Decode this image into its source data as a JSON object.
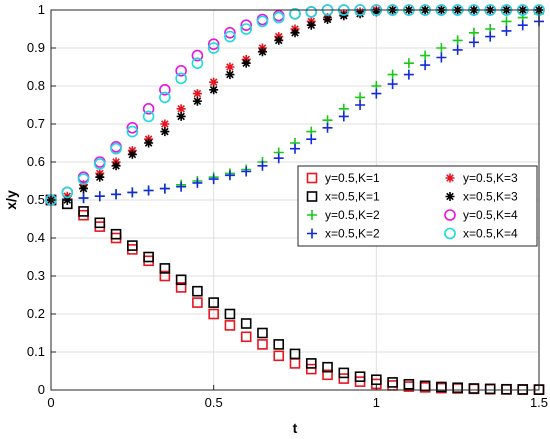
{
  "chart_data": {
    "type": "scatter",
    "title": "",
    "xlabel": "t",
    "ylabel": "x/y",
    "xlim": [
      0,
      1.5
    ],
    "ylim": [
      0,
      1
    ],
    "x_ticks": [
      "0",
      "0.5",
      "1",
      "1.5"
    ],
    "y_ticks": [
      "0",
      "0.1",
      "0.2",
      "0.3",
      "0.4",
      "0.5",
      "0.6",
      "0.7",
      "0.8",
      "0.9",
      "1"
    ],
    "grid": true,
    "legend_position": "right-center",
    "legend_columns": 2,
    "x": [
      0,
      0.05,
      0.1,
      0.15,
      0.2,
      0.25,
      0.3,
      0.35,
      0.4,
      0.45,
      0.5,
      0.55,
      0.6,
      0.65,
      0.7,
      0.75,
      0.8,
      0.85,
      0.9,
      0.95,
      1.0,
      1.05,
      1.1,
      1.15,
      1.2,
      1.25,
      1.3,
      1.35,
      1.4,
      1.45,
      1.5
    ],
    "series": [
      {
        "name": "y=0.5,K=1",
        "color": "#e8141e",
        "marker": "square",
        "values": [
          0.5,
          0.49,
          0.46,
          0.43,
          0.4,
          0.37,
          0.34,
          0.3,
          0.27,
          0.23,
          0.2,
          0.17,
          0.14,
          0.12,
          0.09,
          0.07,
          0.055,
          0.04,
          0.03,
          0.022,
          0.016,
          0.012,
          0.009,
          0.007,
          0.005,
          0.004,
          0.003,
          0.002,
          0.0015,
          0.001,
          0.001
        ]
      },
      {
        "name": "x=0.5,K=1",
        "color": "#000000",
        "marker": "square",
        "values": [
          0.5,
          0.49,
          0.47,
          0.44,
          0.41,
          0.38,
          0.35,
          0.32,
          0.29,
          0.26,
          0.23,
          0.2,
          0.175,
          0.15,
          0.12,
          0.095,
          0.07,
          0.06,
          0.045,
          0.035,
          0.027,
          0.02,
          0.015,
          0.011,
          0.008,
          0.006,
          0.004,
          0.003,
          0.002,
          0.0015,
          0.001
        ]
      },
      {
        "name": "y=0.5,K=2",
        "color": "#19c819",
        "marker": "plus",
        "values": [
          0.5,
          0.5,
          0.505,
          0.51,
          0.515,
          0.52,
          0.525,
          0.53,
          0.54,
          0.55,
          0.56,
          0.57,
          0.58,
          0.6,
          0.625,
          0.65,
          0.68,
          0.71,
          0.74,
          0.77,
          0.8,
          0.83,
          0.86,
          0.88,
          0.9,
          0.92,
          0.94,
          0.95,
          0.97,
          0.98,
          0.99
        ]
      },
      {
        "name": "x=0.5,K=2",
        "color": "#1428dc",
        "marker": "plus",
        "values": [
          0.5,
          0.5,
          0.505,
          0.51,
          0.515,
          0.52,
          0.525,
          0.53,
          0.535,
          0.545,
          0.555,
          0.565,
          0.575,
          0.59,
          0.61,
          0.635,
          0.66,
          0.69,
          0.72,
          0.75,
          0.78,
          0.805,
          0.83,
          0.855,
          0.875,
          0.895,
          0.915,
          0.93,
          0.945,
          0.96,
          0.97
        ]
      },
      {
        "name": "y=0.5,K=3",
        "color": "#e8141e",
        "marker": "asterisk",
        "values": [
          0.5,
          0.51,
          0.54,
          0.57,
          0.6,
          0.63,
          0.66,
          0.7,
          0.74,
          0.78,
          0.81,
          0.85,
          0.87,
          0.9,
          0.93,
          0.95,
          0.97,
          0.98,
          0.99,
          0.995,
          1.0,
          1.0,
          1.0,
          1.0,
          1.0,
          1.0,
          1.0,
          1.0,
          1.0,
          1.0,
          1.0
        ]
      },
      {
        "name": "x=0.5,K=3",
        "color": "#000000",
        "marker": "asterisk",
        "values": [
          0.5,
          0.5,
          0.53,
          0.56,
          0.59,
          0.62,
          0.65,
          0.68,
          0.72,
          0.76,
          0.79,
          0.83,
          0.86,
          0.89,
          0.92,
          0.94,
          0.96,
          0.975,
          0.985,
          0.99,
          0.995,
          1.0,
          1.0,
          1.0,
          1.0,
          1.0,
          1.0,
          1.0,
          1.0,
          1.0,
          1.0
        ]
      },
      {
        "name": "y=0.5,K=4",
        "color": "#e614e6",
        "marker": "circle",
        "values": [
          0.5,
          0.52,
          0.56,
          0.6,
          0.64,
          0.69,
          0.74,
          0.79,
          0.84,
          0.88,
          0.91,
          0.94,
          0.96,
          0.975,
          0.985,
          0.99,
          0.995,
          1.0,
          1.0,
          1.0,
          1.0,
          1.0,
          1.0,
          1.0,
          1.0,
          1.0,
          1.0,
          1.0,
          1.0,
          1.0,
          1.0
        ]
      },
      {
        "name": "x=0.5,K=4",
        "color": "#19dcdc",
        "marker": "circle",
        "values": [
          0.5,
          0.52,
          0.555,
          0.595,
          0.635,
          0.68,
          0.72,
          0.77,
          0.82,
          0.86,
          0.9,
          0.93,
          0.95,
          0.97,
          0.98,
          0.99,
          0.995,
          1.0,
          1.0,
          1.0,
          1.0,
          1.0,
          1.0,
          1.0,
          1.0,
          1.0,
          1.0,
          1.0,
          1.0,
          1.0,
          1.0
        ]
      }
    ]
  }
}
